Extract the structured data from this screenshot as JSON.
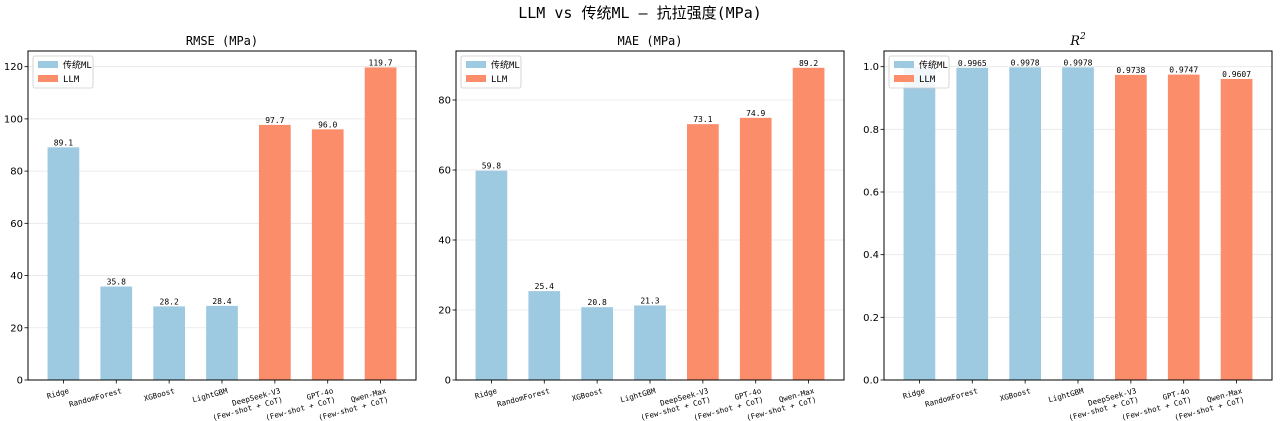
{
  "suptitle": "LLM vs 传统ML — 抗拉强度(MPa)",
  "colors": {
    "ml": "#9ecae1",
    "llm": "#fc8d6b",
    "grid": "#e6e6e6",
    "axis": "#000000"
  },
  "legend": {
    "ml": "传统ML",
    "llm": "LLM"
  },
  "categories": [
    [
      "Ridge"
    ],
    [
      "RandomForest"
    ],
    [
      "XGBoost"
    ],
    [
      "LightGBM"
    ],
    [
      "DeepSeek-V3",
      "(Few-shot + CoT)"
    ],
    [
      "GPT-4o",
      "(Few-shot + CoT)"
    ],
    [
      "Qwen-Max",
      "(Few-shot + CoT)"
    ]
  ],
  "groups": [
    "ml",
    "ml",
    "ml",
    "ml",
    "llm",
    "llm",
    "llm"
  ],
  "chart_data": [
    {
      "type": "bar",
      "title": "RMSE (MPa)",
      "values": [
        89.1,
        35.8,
        28.2,
        28.4,
        97.7,
        96.0,
        119.7
      ],
      "labels": [
        "89.1",
        "35.8",
        "28.2",
        "28.4",
        "97.7",
        "96.0",
        "119.7"
      ],
      "ylim": [
        0,
        126
      ],
      "yticks": [
        0,
        20,
        40,
        60,
        80,
        100,
        120
      ],
      "ytick_labels": [
        "0",
        "20",
        "40",
        "60",
        "80",
        "100",
        "120"
      ],
      "legend": "upper-left",
      "grid": "y"
    },
    {
      "type": "bar",
      "title": "MAE (MPa)",
      "values": [
        59.8,
        25.4,
        20.8,
        21.3,
        73.1,
        74.9,
        89.2
      ],
      "labels": [
        "59.8",
        "25.4",
        "20.8",
        "21.3",
        "73.1",
        "74.9",
        "89.2"
      ],
      "ylim": [
        0,
        94
      ],
      "yticks": [
        0,
        20,
        40,
        60,
        80
      ],
      "ytick_labels": [
        "0",
        "20",
        "40",
        "60",
        "80"
      ],
      "legend": "upper-left",
      "grid": "y"
    },
    {
      "type": "bar",
      "title": "R²",
      "values": [
        0.998,
        0.9965,
        0.9978,
        0.9978,
        0.9738,
        0.9747,
        0.9607
      ],
      "labels": [
        "",
        "0.9965",
        "0.9978",
        "0.9978",
        "0.9738",
        "0.9747",
        "0.9607"
      ],
      "ylim": [
        0,
        1.05
      ],
      "yticks": [
        0,
        0.2,
        0.4,
        0.6,
        0.8,
        1.0
      ],
      "ytick_labels": [
        "0.0",
        "0.2",
        "0.4",
        "0.6",
        "0.8",
        "1.0"
      ],
      "legend": "upper-left",
      "grid": "y"
    }
  ]
}
